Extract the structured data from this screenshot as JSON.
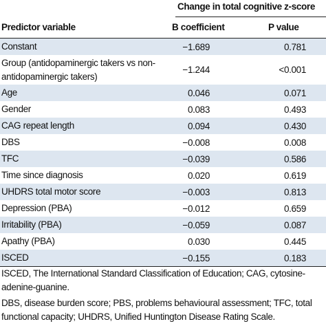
{
  "table": {
    "spanning_header": "Change in total cognitive z-score",
    "columns": [
      "Predictor variable",
      "B coefficient",
      "P value"
    ],
    "rows": [
      [
        "Constant",
        "−1.689",
        "0.781"
      ],
      [
        "Group (antidopaminergic takers vs non-antidopaminergic takers)",
        "−1.244",
        "<0.001"
      ],
      [
        "Age",
        "0.046",
        "0.071"
      ],
      [
        "Gender",
        "0.083",
        "0.493"
      ],
      [
        "CAG repeat length",
        "0.094",
        "0.430"
      ],
      [
        "DBS",
        "−0.008",
        "0.008"
      ],
      [
        "TFC",
        "−0.039",
        "0.586"
      ],
      [
        "Time since diagnosis",
        "0.020",
        "0.619"
      ],
      [
        "UHDRS total motor score",
        "−0.003",
        "0.813"
      ],
      [
        "Depression (PBA)",
        "−0.012",
        "0.659"
      ],
      [
        "Irritability (PBA)",
        "−0.059",
        "0.087"
      ],
      [
        "Apathy (PBA)",
        "0.030",
        "0.445"
      ],
      [
        "ISCED",
        "−0.155",
        "0.183"
      ]
    ]
  },
  "footnotes": [
    "ISCED, The International Standard Classification of Education; CAG, cytosine-adenine-guanine.",
    "DBS, disease burden score; PBS, problems behavioural assessment; TFC, total functional capacity; UHDRS, Unified Huntington Disease Rating Scale."
  ]
}
